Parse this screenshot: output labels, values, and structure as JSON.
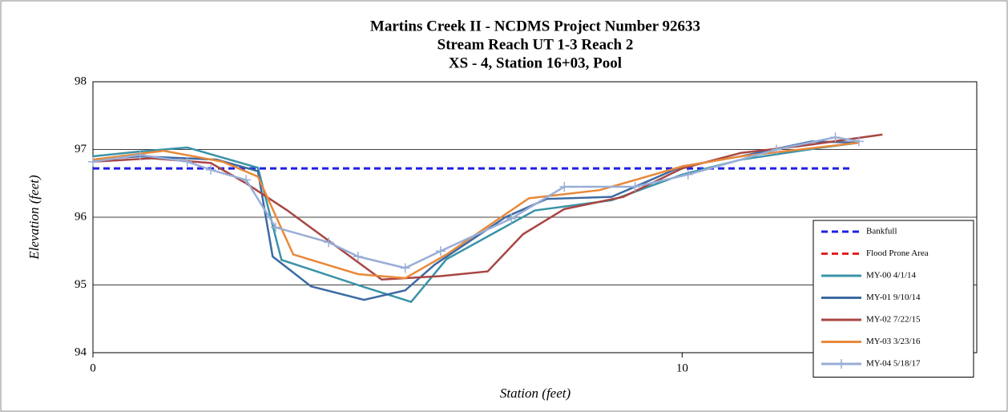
{
  "chart_data": {
    "type": "line",
    "title": [
      "Martins Creek II - NCDMS Project Number 92633",
      "Stream Reach UT 1-3 Reach 2",
      "XS - 4, Station 16+03, Pool"
    ],
    "xlabel": "Station (feet)",
    "ylabel": "Elevation (feet)",
    "xlim": [
      0,
      15
    ],
    "xticks": [
      0,
      10
    ],
    "ylim": [
      94,
      98
    ],
    "yticks": [
      94,
      95,
      96,
      97,
      98
    ],
    "grid": true,
    "legend": "right",
    "series": [
      {
        "name": "Bankfull",
        "color": "#1f1fe6",
        "dashed": true,
        "x": [
          0,
          12.88
        ],
        "values": [
          96.72,
          96.72
        ]
      },
      {
        "name": "Flood Prone Area",
        "color": "#e61f1f",
        "dashed": true,
        "x": [],
        "values": []
      },
      {
        "name": "MY-00 4/1/14",
        "color": "#3a93a8",
        "x": [
          0,
          0.8,
          1.6,
          2.8,
          3.2,
          4.6,
          5.4,
          6.0,
          7.5,
          8.8,
          10,
          11,
          12.3,
          13
        ],
        "values": [
          96.9,
          96.97,
          97.03,
          96.73,
          95.37,
          94.97,
          94.75,
          95.38,
          96.1,
          96.25,
          96.63,
          96.85,
          97.02,
          97.1
        ]
      },
      {
        "name": "MY-01 9/10/14",
        "color": "#3d6aa3",
        "x": [
          0,
          0.8,
          2.1,
          2.8,
          3.05,
          3.7,
          4.6,
          5.3,
          5.8,
          7.0,
          7.7,
          8.8,
          10,
          11,
          12.2,
          13
        ],
        "values": [
          96.85,
          96.9,
          96.85,
          96.68,
          95.42,
          94.98,
          94.78,
          94.92,
          95.3,
          96.0,
          96.27,
          96.3,
          96.75,
          96.9,
          97.12,
          97.1
        ]
      },
      {
        "name": "MY-02 7/22/15",
        "color": "#a84643",
        "x": [
          0,
          1.0,
          2.0,
          2.6,
          3.3,
          4.9,
          5.9,
          6.7,
          7.3,
          8.0,
          9.0,
          10,
          11,
          12,
          13.4
        ],
        "values": [
          96.82,
          96.87,
          96.8,
          96.5,
          96.1,
          95.08,
          95.13,
          95.2,
          95.75,
          96.12,
          96.3,
          96.72,
          96.95,
          97.05,
          97.22
        ]
      },
      {
        "name": "MY-03 3/23/16",
        "color": "#e8893a",
        "x": [
          0,
          1.2,
          2.2,
          2.8,
          3.4,
          4.5,
          5.3,
          6.0,
          7.4,
          8.6,
          10,
          11,
          13
        ],
        "values": [
          96.85,
          96.98,
          96.82,
          96.6,
          95.45,
          95.16,
          95.1,
          95.45,
          96.28,
          96.4,
          96.75,
          96.9,
          97.1
        ]
      },
      {
        "name": "MY-04 5/18/17",
        "color": "#98aed6",
        "markers": true,
        "x": [
          0,
          0.8,
          1.6,
          2.0,
          2.6,
          3.1,
          4.0,
          4.5,
          5.3,
          5.9,
          7.1,
          8.0,
          9.2,
          10.1,
          11.6,
          12.6,
          13.0
        ],
        "values": [
          96.82,
          96.92,
          96.82,
          96.7,
          96.55,
          95.85,
          95.63,
          95.42,
          95.25,
          95.5,
          95.98,
          96.45,
          96.45,
          96.63,
          97.0,
          97.18,
          97.12
        ]
      }
    ]
  }
}
